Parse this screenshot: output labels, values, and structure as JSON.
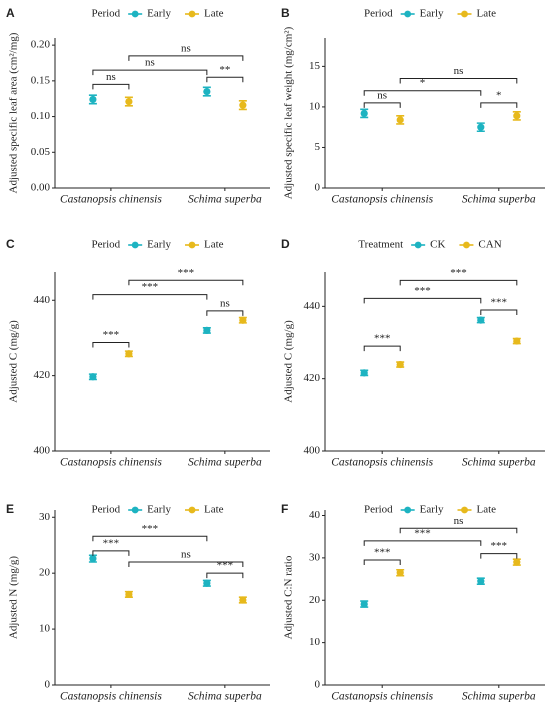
{
  "chart_data": [
    {
      "type": "dotplot",
      "panel": "A",
      "ylabel": "Adjusted specific leaf area (cm²/mg)",
      "legend_title": "Period",
      "categories": [
        "Castanopsis chinensis",
        "Schima superba"
      ],
      "series": [
        {
          "name": "Early",
          "color": "#1db3c1",
          "values": [
            0.124,
            0.135
          ],
          "errors": [
            0.006,
            0.006
          ]
        },
        {
          "name": "Late",
          "color": "#e7b91c",
          "values": [
            0.121,
            0.116
          ],
          "errors": [
            0.006,
            0.006
          ]
        }
      ],
      "ylim": [
        0,
        0.21
      ],
      "yticks": [
        {
          "value": 0,
          "label": "0.00"
        },
        0.05,
        {
          "value": 0.1,
          "label": "0.10"
        },
        0.15,
        {
          "value": 0.2,
          "label": "0.20"
        }
      ],
      "brackets": [
        {
          "label": "ns",
          "y": 0.145,
          "from": [
            0,
            0
          ],
          "to": [
            1,
            0
          ]
        },
        {
          "label": "ns",
          "y": 0.165,
          "from": [
            0,
            0
          ],
          "to": [
            0,
            1
          ]
        },
        {
          "label": "**",
          "y": 0.155,
          "from": [
            0,
            1
          ],
          "to": [
            1,
            1
          ]
        },
        {
          "label": "ns",
          "y": 0.185,
          "from": [
            1,
            0
          ],
          "to": [
            1,
            1
          ]
        }
      ]
    },
    {
      "type": "dotplot",
      "panel": "B",
      "ylabel": "Adjusted specific leaf weight (mg/cm²)",
      "legend_title": "Period",
      "categories": [
        "Castanopsis chinensis",
        "Schima superba"
      ],
      "series": [
        {
          "name": "Early",
          "color": "#1db3c1",
          "values": [
            9.2,
            7.5
          ],
          "errors": [
            0.5,
            0.5
          ]
        },
        {
          "name": "Late",
          "color": "#e7b91c",
          "values": [
            8.4,
            8.9
          ],
          "errors": [
            0.5,
            0.5
          ]
        }
      ],
      "ylim": [
        0,
        18.5
      ],
      "yticks": [
        0,
        5,
        10,
        15
      ],
      "brackets": [
        {
          "label": "ns",
          "y": 10.5,
          "from": [
            0,
            0
          ],
          "to": [
            1,
            0
          ]
        },
        {
          "label": "*",
          "y": 12,
          "from": [
            0,
            0
          ],
          "to": [
            0,
            1
          ]
        },
        {
          "label": "*",
          "y": 10.5,
          "from": [
            0,
            1
          ],
          "to": [
            1,
            1
          ]
        },
        {
          "label": "ns",
          "y": 13.5,
          "from": [
            1,
            0
          ],
          "to": [
            1,
            1
          ]
        }
      ]
    },
    {
      "type": "dotplot",
      "panel": "C",
      "ylabel": "Adjusted C (mg/g)",
      "legend_title": "Period",
      "categories": [
        "Castanopsis chinensis",
        "Schima superba"
      ],
      "series": [
        {
          "name": "Early",
          "color": "#1db3c1",
          "values": [
            419.7,
            432
          ],
          "errors": [
            0.7,
            0.7
          ]
        },
        {
          "name": "Late",
          "color": "#e7b91c",
          "values": [
            425.8,
            434.7
          ],
          "errors": [
            0.7,
            0.7
          ]
        }
      ],
      "ylim": [
        400,
        447.5
      ],
      "yticks": [
        400,
        420,
        440
      ],
      "brackets": [
        {
          "label": "***",
          "y": 428.8,
          "from": [
            0,
            0
          ],
          "to": [
            1,
            0
          ]
        },
        {
          "label": "***",
          "y": 441.5,
          "from": [
            0,
            0
          ],
          "to": [
            0,
            1
          ]
        },
        {
          "label": "ns",
          "y": 437.2,
          "from": [
            0,
            1
          ],
          "to": [
            1,
            1
          ]
        },
        {
          "label": "***",
          "y": 445.3,
          "from": [
            1,
            0
          ],
          "to": [
            1,
            1
          ]
        }
      ]
    },
    {
      "type": "dotplot",
      "panel": "D",
      "ylabel": "Adjusted C (mg/g)",
      "legend_title": "Treatment",
      "categories": [
        "Castanopsis chinensis",
        "Schima superba"
      ],
      "series": [
        {
          "name": "CK",
          "color": "#1db3c1",
          "values": [
            421.6,
            436.2
          ],
          "errors": [
            0.7,
            0.7
          ]
        },
        {
          "name": "CAN",
          "color": "#e7b91c",
          "values": [
            423.9,
            430.4
          ],
          "errors": [
            0.7,
            0.7
          ]
        }
      ],
      "ylim": [
        400,
        449.5
      ],
      "yticks": [
        400,
        420,
        440
      ],
      "brackets": [
        {
          "label": "***",
          "y": 429,
          "from": [
            0,
            0
          ],
          "to": [
            1,
            0
          ]
        },
        {
          "label": "***",
          "y": 442.2,
          "from": [
            0,
            0
          ],
          "to": [
            0,
            1
          ]
        },
        {
          "label": "***",
          "y": 439,
          "from": [
            0,
            1
          ],
          "to": [
            1,
            1
          ]
        },
        {
          "label": "***",
          "y": 447.2,
          "from": [
            1,
            0
          ],
          "to": [
            1,
            1
          ]
        }
      ]
    },
    {
      "type": "dotplot",
      "panel": "E",
      "ylabel": "Adjusted N (mg/g)",
      "legend_title": "Period",
      "categories": [
        "Castanopsis chinensis",
        "Schima superba"
      ],
      "series": [
        {
          "name": "Early",
          "color": "#1db3c1",
          "values": [
            22.6,
            18.2
          ],
          "errors": [
            0.6,
            0.5
          ]
        },
        {
          "name": "Late",
          "color": "#e7b91c",
          "values": [
            16.2,
            15.2
          ],
          "errors": [
            0.5,
            0.5
          ]
        }
      ],
      "ylim": [
        0,
        31.3
      ],
      "yticks": [
        0,
        10,
        20,
        30
      ],
      "brackets": [
        {
          "label": "***",
          "y": 24,
          "from": [
            0,
            0
          ],
          "to": [
            1,
            0
          ]
        },
        {
          "label": "***",
          "y": 26.6,
          "from": [
            0,
            0
          ],
          "to": [
            0,
            1
          ]
        },
        {
          "label": "***",
          "y": 20,
          "from": [
            0,
            1
          ],
          "to": [
            1,
            1
          ]
        },
        {
          "label": "ns",
          "y": 22,
          "from": [
            1,
            0
          ],
          "to": [
            1,
            1
          ]
        }
      ]
    },
    {
      "type": "dotplot",
      "panel": "F",
      "ylabel": "Adjusted C:N ratio",
      "legend_title": "Period",
      "categories": [
        "Castanopsis chinensis",
        "Schima superba"
      ],
      "series": [
        {
          "name": "Early",
          "color": "#1db3c1",
          "values": [
            19.1,
            24.5
          ],
          "errors": [
            0.7,
            0.7
          ]
        },
        {
          "name": "Late",
          "color": "#e7b91c",
          "values": [
            26.5,
            29
          ],
          "errors": [
            0.7,
            0.7
          ]
        }
      ],
      "ylim": [
        0,
        41.3
      ],
      "yticks": [
        0,
        10,
        20,
        30,
        40
      ],
      "brackets": [
        {
          "label": "***",
          "y": 29.5,
          "from": [
            0,
            0
          ],
          "to": [
            1,
            0
          ]
        },
        {
          "label": "***",
          "y": 34,
          "from": [
            0,
            0
          ],
          "to": [
            0,
            1
          ]
        },
        {
          "label": "***",
          "y": 31,
          "from": [
            0,
            1
          ],
          "to": [
            1,
            1
          ]
        },
        {
          "label": "ns",
          "y": 37,
          "from": [
            1,
            0
          ],
          "to": [
            1,
            1
          ]
        }
      ]
    }
  ]
}
